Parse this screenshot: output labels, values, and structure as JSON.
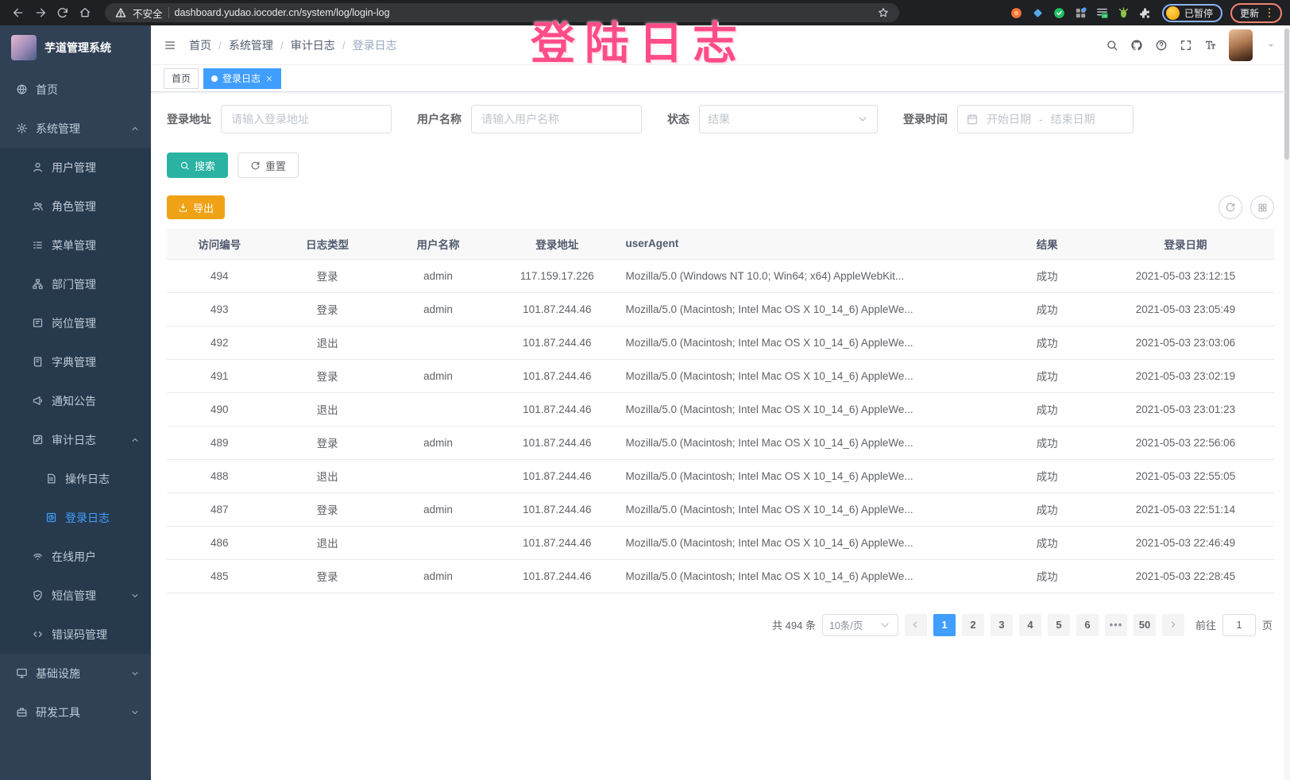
{
  "colors": {
    "accent": "#409eff",
    "sidebar_bg": "#304156",
    "submenu_bg": "#273a4d",
    "search_btn": "#2ab3a3",
    "export_btn": "#f0a216",
    "annotation": "#ff4d88"
  },
  "browser": {
    "security_warning": "不安全",
    "url": "dashboard.yudao.iocoder.cn/system/log/login-log",
    "extensions": [
      "orange-circle-extension-icon",
      "blue-diamond-extension-icon",
      "green-check-extension-icon",
      "grid-extension-icon",
      "list-on-extension-icon",
      "green-bug-extension-icon",
      "puzzle-extension-icon"
    ],
    "on_badge": "on",
    "profile_status": "已暂停",
    "update_label": "更新"
  },
  "annotation": {
    "text": "登陆日志"
  },
  "sidebar": {
    "app_title": "芋道管理系统",
    "items": [
      {
        "label": "首页",
        "icon": "dashboard-icon",
        "level": 1
      },
      {
        "label": "系统管理",
        "icon": "gear-icon",
        "level": 1,
        "chevron": "up"
      },
      {
        "label": "用户管理",
        "icon": "user-icon",
        "level": 2
      },
      {
        "label": "角色管理",
        "icon": "role-icon",
        "level": 2
      },
      {
        "label": "菜单管理",
        "icon": "menu-list-icon",
        "level": 2
      },
      {
        "label": "部门管理",
        "icon": "dept-tree-icon",
        "level": 2
      },
      {
        "label": "岗位管理",
        "icon": "post-badge-icon",
        "level": 2
      },
      {
        "label": "字典管理",
        "icon": "dict-book-icon",
        "level": 2
      },
      {
        "label": "通知公告",
        "icon": "notice-icon",
        "level": 2
      },
      {
        "label": "审计日志",
        "icon": "audit-edit-icon",
        "level": 2,
        "chevron": "up"
      },
      {
        "label": "操作日志",
        "icon": "operate-log-icon",
        "level": 3
      },
      {
        "label": "登录日志",
        "icon": "login-log-icon",
        "level": 3,
        "active": true
      },
      {
        "label": "在线用户",
        "icon": "online-user-icon",
        "level": 2
      },
      {
        "label": "短信管理",
        "icon": "sms-shield-icon",
        "level": 2,
        "chevron": "down"
      },
      {
        "label": "错误码管理",
        "icon": "error-code-icon",
        "level": 2
      },
      {
        "label": "基础设施",
        "icon": "infra-monitor-icon",
        "level": 1,
        "chevron": "down"
      },
      {
        "label": "研发工具",
        "icon": "dev-tools-icon",
        "level": 1,
        "chevron": "down"
      }
    ]
  },
  "header": {
    "breadcrumb": [
      "首页",
      "系统管理",
      "审计日志",
      "登录日志"
    ],
    "right_icons": [
      "search-icon",
      "github-icon",
      "help-icon",
      "fullscreen-icon",
      "font-size-icon"
    ]
  },
  "tabs": [
    {
      "label": "首页",
      "active": false,
      "closable": false
    },
    {
      "label": "登录日志",
      "active": true,
      "closable": true
    }
  ],
  "filters": {
    "address_label": "登录地址",
    "address_placeholder": "请输入登录地址",
    "username_label": "用户名称",
    "username_placeholder": "请输入用户名称",
    "status_label": "状态",
    "status_placeholder": "结果",
    "time_label": "登录时间",
    "start_placeholder": "开始日期",
    "range_separator": "-",
    "end_placeholder": "结束日期",
    "search_label": "搜索",
    "reset_label": "重置",
    "export_label": "导出"
  },
  "table": {
    "columns": [
      "访问编号",
      "日志类型",
      "用户名称",
      "登录地址",
      "userAgent",
      "结果",
      "登录日期"
    ],
    "rows": [
      [
        "494",
        "登录",
        "admin",
        "117.159.17.226",
        "Mozilla/5.0 (Windows NT 10.0; Win64; x64) AppleWebKit...",
        "成功",
        "2021-05-03 23:12:15"
      ],
      [
        "493",
        "登录",
        "admin",
        "101.87.244.46",
        "Mozilla/5.0 (Macintosh; Intel Mac OS X 10_14_6) AppleWe...",
        "成功",
        "2021-05-03 23:05:49"
      ],
      [
        "492",
        "退出",
        "",
        "101.87.244.46",
        "Mozilla/5.0 (Macintosh; Intel Mac OS X 10_14_6) AppleWe...",
        "成功",
        "2021-05-03 23:03:06"
      ],
      [
        "491",
        "登录",
        "admin",
        "101.87.244.46",
        "Mozilla/5.0 (Macintosh; Intel Mac OS X 10_14_6) AppleWe...",
        "成功",
        "2021-05-03 23:02:19"
      ],
      [
        "490",
        "退出",
        "",
        "101.87.244.46",
        "Mozilla/5.0 (Macintosh; Intel Mac OS X 10_14_6) AppleWe...",
        "成功",
        "2021-05-03 23:01:23"
      ],
      [
        "489",
        "登录",
        "admin",
        "101.87.244.46",
        "Mozilla/5.0 (Macintosh; Intel Mac OS X 10_14_6) AppleWe...",
        "成功",
        "2021-05-03 22:56:06"
      ],
      [
        "488",
        "退出",
        "",
        "101.87.244.46",
        "Mozilla/5.0 (Macintosh; Intel Mac OS X 10_14_6) AppleWe...",
        "成功",
        "2021-05-03 22:55:05"
      ],
      [
        "487",
        "登录",
        "admin",
        "101.87.244.46",
        "Mozilla/5.0 (Macintosh; Intel Mac OS X 10_14_6) AppleWe...",
        "成功",
        "2021-05-03 22:51:14"
      ],
      [
        "486",
        "退出",
        "",
        "101.87.244.46",
        "Mozilla/5.0 (Macintosh; Intel Mac OS X 10_14_6) AppleWe...",
        "成功",
        "2021-05-03 22:46:49"
      ],
      [
        "485",
        "登录",
        "admin",
        "101.87.244.46",
        "Mozilla/5.0 (Macintosh; Intel Mac OS X 10_14_6) AppleWe...",
        "成功",
        "2021-05-03 22:28:45"
      ]
    ]
  },
  "pagination": {
    "total": "共 494 条",
    "page_size": "10条/页",
    "pages": [
      "1",
      "2",
      "3",
      "4",
      "5",
      "6",
      "•••",
      "50"
    ],
    "active_page": "1",
    "goto_label": "前往",
    "goto_value": "1",
    "page_unit": "页"
  }
}
